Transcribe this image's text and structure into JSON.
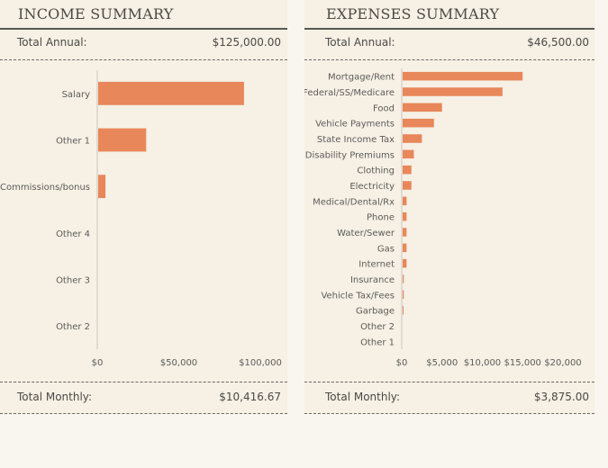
{
  "income": {
    "title": "INCOME SUMMARY",
    "total_annual_label": "Total Annual:",
    "total_annual_value": "$125,000.00",
    "total_monthly_label": "Total Monthly:",
    "total_monthly_value": "$10,416.67"
  },
  "expenses": {
    "title": "EXPENSES SUMMARY",
    "total_annual_label": "Total Annual:",
    "total_annual_value": "$46,500.00",
    "total_monthly_label": "Total Monthly:",
    "total_monthly_value": "$3,875.00"
  },
  "colors": {
    "bar": "#e8875a",
    "axis": "#d9d4cc"
  },
  "chart_data": [
    {
      "type": "bar",
      "orientation": "horizontal",
      "title": "INCOME SUMMARY",
      "categories": [
        "Salary",
        "Other 1",
        "Commissions/bonus",
        "Other 4",
        "Other 3",
        "Other 2"
      ],
      "values": [
        90000,
        30000,
        5000,
        0,
        0,
        0
      ],
      "xlim": [
        0,
        100000
      ],
      "xticks": [
        0,
        50000,
        100000
      ],
      "xtick_labels": [
        "$0",
        "$50,000",
        "$100,000"
      ],
      "grid": false,
      "legend": "none"
    },
    {
      "type": "bar",
      "orientation": "horizontal",
      "title": "EXPENSES SUMMARY",
      "categories": [
        "Mortgage/Rent",
        "Federal/SS/Medicare",
        "Food",
        "Vehicle Payments",
        "State Income Tax",
        "Disability Premiums",
        "Clothing",
        "Electricity",
        "Medical/Dental/Rx",
        "Phone",
        "Water/Sewer",
        "Gas",
        "Internet",
        "Insurance",
        "Vehicle Tax/Fees",
        "Garbage",
        "Other 2",
        "Other 1"
      ],
      "values": [
        15000,
        12500,
        5000,
        4000,
        2500,
        1500,
        1200,
        1200,
        600,
        600,
        600,
        600,
        600,
        250,
        250,
        100,
        0,
        0
      ],
      "xlim": [
        0,
        20000
      ],
      "xticks": [
        0,
        5000,
        10000,
        15000,
        20000
      ],
      "xtick_labels": [
        "$0",
        "$5,000",
        "$10,000",
        "$15,000",
        "$20,000"
      ],
      "grid": false,
      "legend": "none"
    }
  ]
}
